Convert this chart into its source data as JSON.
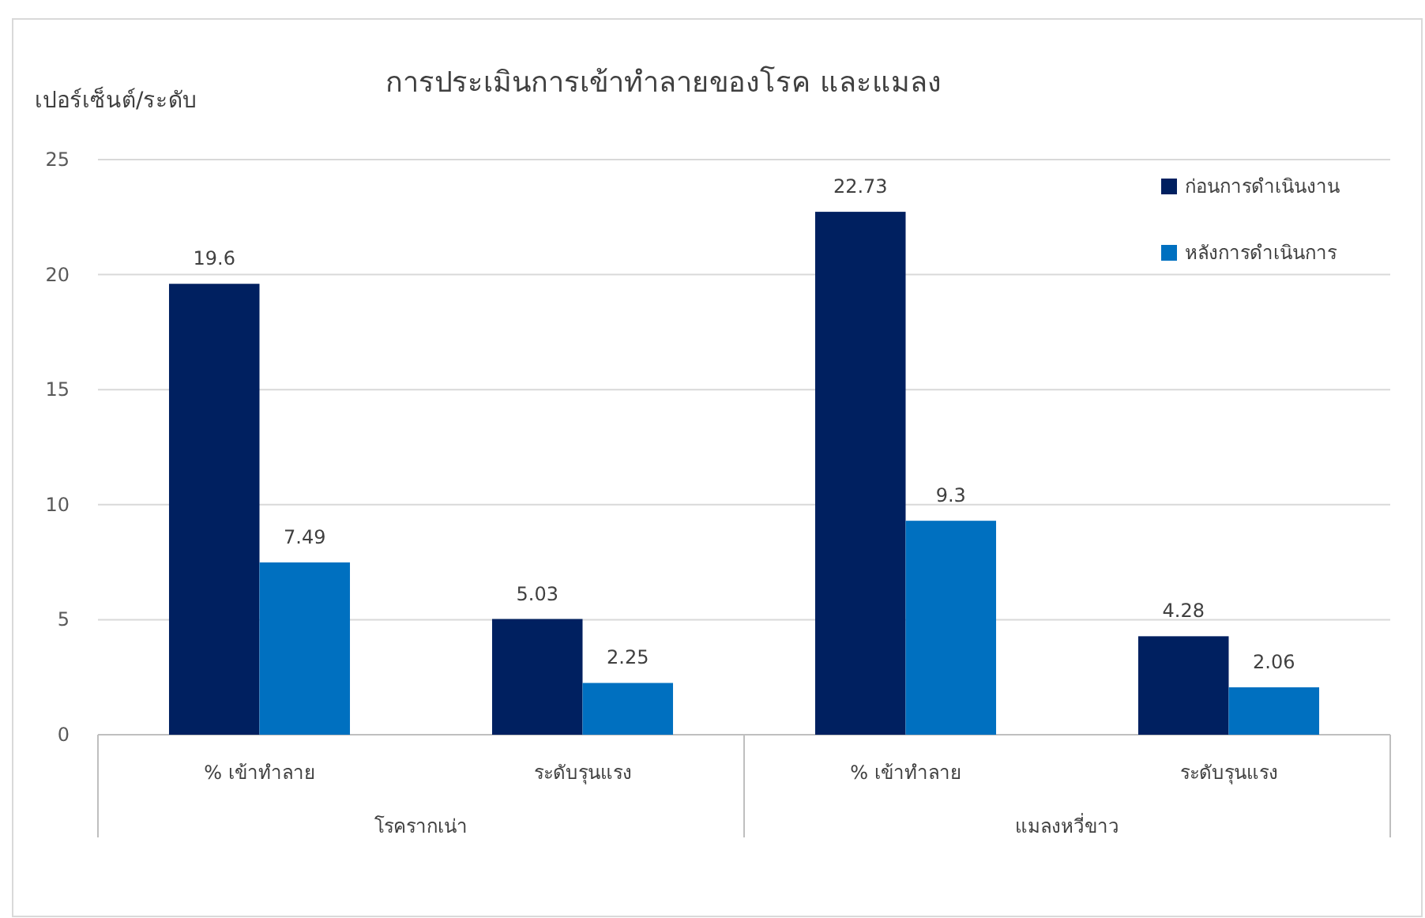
{
  "chart_data": {
    "type": "bar",
    "title": "การประเมินการเข้าทำลายของโรค  และแมลง",
    "ylabel": "เปอร์เซ็นต์/ระดับ",
    "categories": [
      "% เข้าทำลาย",
      "ระดับรุนแรง",
      "% เข้าทำลาย",
      "ระดับรุนแรง"
    ],
    "annotations": [
      "โรครากเน่า",
      "แมลงหวี่ขาว"
    ],
    "series": [
      {
        "name": "ก่อนการดำเนินงาน",
        "color": "#002060",
        "values": [
          19.6,
          5.03,
          22.73,
          4.28
        ]
      },
      {
        "name": "หลังการดำเนินการ",
        "color": "#0070c0",
        "values": [
          7.49,
          2.25,
          9.3,
          2.06
        ]
      }
    ],
    "ylim": [
      0,
      25
    ],
    "yticks": [
      0,
      5,
      10,
      15,
      20,
      25
    ],
    "grid": "y",
    "legend": "top right",
    "data_labels": true
  }
}
